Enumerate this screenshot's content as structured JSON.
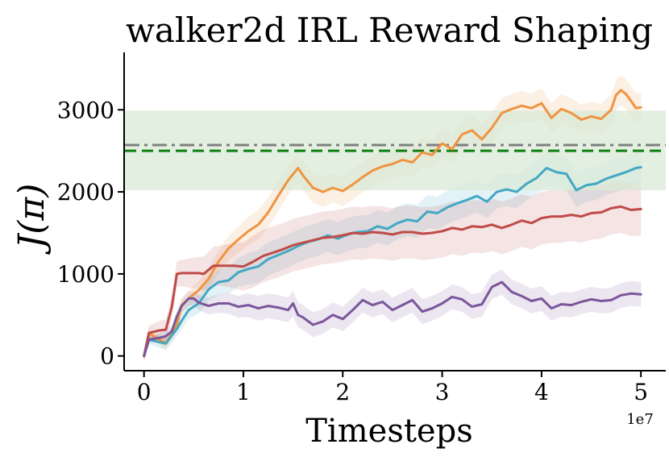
{
  "chart_data": {
    "type": "line",
    "title": "walker2d IRL Reward Shaping",
    "xlabel": "Timesteps",
    "ylabel": "J(π)",
    "x_offset_label": "1e7",
    "xlim": [
      -0.2,
      5.25
    ],
    "ylim": [
      -180,
      3700
    ],
    "xticks": [
      0,
      1,
      2,
      3,
      4,
      5
    ],
    "xtick_labels": [
      "0",
      "1",
      "2",
      "3",
      "4",
      "5"
    ],
    "yticks": [
      0,
      1000,
      2000,
      3000
    ],
    "ytick_labels": [
      "0",
      "1000",
      "2000",
      "3000"
    ],
    "grid": false,
    "legend": "none",
    "reference_band": {
      "y0": 2020,
      "y1": 2990,
      "color": "#d9ead6"
    },
    "reference_lines": [
      {
        "y": 2570,
        "color": "#808080",
        "style": "dashdot"
      },
      {
        "y": 2500,
        "color": "#108010",
        "style": "dashed"
      }
    ],
    "series": [
      {
        "color": "#ef9440",
        "x": [
          0,
          0.05,
          0.15,
          0.22,
          0.28,
          0.33,
          0.38,
          0.45,
          0.55,
          0.65,
          0.75,
          0.85,
          0.95,
          1.05,
          1.15,
          1.25,
          1.35,
          1.45,
          1.55,
          1.6,
          1.7,
          1.8,
          1.9,
          2.0,
          2.1,
          2.2,
          2.3,
          2.4,
          2.5,
          2.6,
          2.7,
          2.8,
          2.9,
          3.0,
          3.1,
          3.2,
          3.3,
          3.4,
          3.5,
          3.6,
          3.7,
          3.8,
          3.9,
          4.0,
          4.1,
          4.2,
          4.3,
          4.4,
          4.5,
          4.6,
          4.7,
          4.75,
          4.8,
          4.85,
          4.9,
          4.95,
          5.0
        ],
        "values": [
          0,
          280,
          200,
          160,
          270,
          380,
          620,
          700,
          800,
          940,
          1150,
          1310,
          1420,
          1520,
          1600,
          1750,
          1950,
          2140,
          2290,
          2200,
          2050,
          2000,
          2050,
          2010,
          2090,
          2180,
          2260,
          2310,
          2340,
          2390,
          2360,
          2480,
          2450,
          2590,
          2520,
          2700,
          2750,
          2640,
          2780,
          2960,
          3010,
          3050,
          3020,
          3080,
          2900,
          3010,
          2960,
          2880,
          2920,
          2890,
          3000,
          3180,
          3240,
          3190,
          3110,
          3020,
          3030
        ],
        "band_halfwidth": 180
      },
      {
        "color": "#43a8c4",
        "x": [
          0,
          0.05,
          0.15,
          0.22,
          0.28,
          0.33,
          0.38,
          0.45,
          0.55,
          0.65,
          0.75,
          0.85,
          0.95,
          1.05,
          1.15,
          1.25,
          1.35,
          1.45,
          1.55,
          1.65,
          1.75,
          1.85,
          1.95,
          2.05,
          2.15,
          2.25,
          2.35,
          2.45,
          2.55,
          2.65,
          2.75,
          2.85,
          2.95,
          3.05,
          3.15,
          3.25,
          3.35,
          3.45,
          3.55,
          3.65,
          3.75,
          3.85,
          3.95,
          4.05,
          4.15,
          4.25,
          4.35,
          4.45,
          4.55,
          4.65,
          4.75,
          4.85,
          4.95,
          5.0
        ],
        "values": [
          0,
          200,
          170,
          150,
          250,
          330,
          430,
          560,
          640,
          810,
          900,
          920,
          1020,
          1060,
          1090,
          1180,
          1230,
          1280,
          1340,
          1390,
          1420,
          1470,
          1430,
          1480,
          1510,
          1520,
          1580,
          1550,
          1620,
          1660,
          1640,
          1760,
          1740,
          1810,
          1860,
          1900,
          1950,
          1880,
          2000,
          2030,
          2000,
          2100,
          2170,
          2290,
          2240,
          2220,
          2020,
          2080,
          2100,
          2160,
          2200,
          2240,
          2290,
          2300
        ],
        "band_halfwidth": 200
      },
      {
        "color": "#bf4b48",
        "x": [
          0,
          0.05,
          0.15,
          0.22,
          0.28,
          0.33,
          0.38,
          0.45,
          0.55,
          0.6,
          0.7,
          0.8,
          0.9,
          1.0,
          1.1,
          1.2,
          1.3,
          1.4,
          1.5,
          1.6,
          1.7,
          1.8,
          1.9,
          2.0,
          2.1,
          2.2,
          2.3,
          2.4,
          2.5,
          2.6,
          2.7,
          2.8,
          2.9,
          3.0,
          3.1,
          3.2,
          3.3,
          3.4,
          3.5,
          3.6,
          3.7,
          3.8,
          3.9,
          4.0,
          4.1,
          4.2,
          4.3,
          4.4,
          4.5,
          4.6,
          4.7,
          4.8,
          4.9,
          5.0
        ],
        "values": [
          0,
          280,
          310,
          320,
          600,
          1000,
          1010,
          1010,
          1010,
          1000,
          1100,
          1100,
          1100,
          1090,
          1150,
          1220,
          1260,
          1300,
          1350,
          1380,
          1410,
          1440,
          1450,
          1470,
          1500,
          1490,
          1510,
          1500,
          1480,
          1510,
          1510,
          1490,
          1500,
          1520,
          1560,
          1540,
          1580,
          1570,
          1600,
          1560,
          1600,
          1650,
          1620,
          1680,
          1700,
          1700,
          1720,
          1700,
          1740,
          1750,
          1800,
          1820,
          1780,
          1790
        ],
        "band_halfwidth": 320
      },
      {
        "color": "#7b569a",
        "x": [
          0,
          0.05,
          0.15,
          0.22,
          0.28,
          0.33,
          0.38,
          0.45,
          0.5,
          0.55,
          0.65,
          0.75,
          0.85,
          0.95,
          1.05,
          1.15,
          1.25,
          1.35,
          1.45,
          1.5,
          1.55,
          1.6,
          1.7,
          1.8,
          1.9,
          2.0,
          2.1,
          2.2,
          2.3,
          2.4,
          2.5,
          2.6,
          2.7,
          2.8,
          2.9,
          3.0,
          3.1,
          3.2,
          3.3,
          3.4,
          3.5,
          3.6,
          3.7,
          3.8,
          3.9,
          4.0,
          4.1,
          4.2,
          4.3,
          4.4,
          4.5,
          4.6,
          4.7,
          4.8,
          4.9,
          5.0
        ],
        "values": [
          0,
          200,
          220,
          240,
          300,
          480,
          610,
          700,
          700,
          650,
          610,
          640,
          640,
          600,
          620,
          580,
          610,
          590,
          560,
          640,
          500,
          470,
          380,
          420,
          500,
          450,
          560,
          680,
          620,
          660,
          560,
          620,
          680,
          540,
          580,
          640,
          720,
          690,
          600,
          630,
          840,
          900,
          780,
          730,
          670,
          700,
          580,
          630,
          620,
          660,
          690,
          670,
          680,
          740,
          760,
          750
        ],
        "band_halfwidth": 150
      }
    ]
  }
}
